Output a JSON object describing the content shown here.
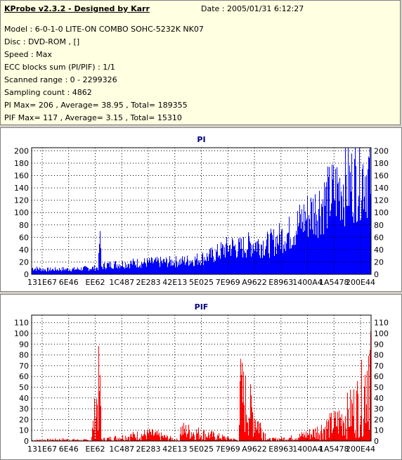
{
  "header": {
    "title": "KProbe v2.3.2 - Designed by Karr",
    "date": "Date : 2005/01/31 6:12:27"
  },
  "info_lines": [
    "Model : 6-0-1-0 LITE-ON COMBO SOHC-5232K NK07",
    "Disc : DVD-ROM ,  []",
    "Speed : Max",
    "ECC blocks sum (PI/PIF) : 1/1",
    "Scanned range : 0 - 2299326",
    "Sampling count : 4862",
    "PI Max= 206 , Average= 38.95 , Total= 189355",
    "PIF Max= 117 , Average= 3.15 , Total= 15310"
  ],
  "colors": {
    "pi": "#0000ff",
    "pif": "#ff0000",
    "title": "#00007f",
    "grid": "#000000"
  },
  "chart_data": [
    {
      "type": "area",
      "title": "PI",
      "ylim": [
        0,
        205
      ],
      "yticks": [
        0,
        20,
        40,
        60,
        80,
        100,
        120,
        140,
        160,
        180,
        200
      ],
      "xtick_labels": [
        "131E67",
        "6E46",
        "EE62",
        "1C487",
        "2E283",
        "42E13",
        "5E025",
        "7E969",
        "A9622",
        "E8963",
        "1400A4",
        "1A5478",
        "200E44"
      ],
      "xlim": [
        0,
        2299326
      ],
      "grid": true,
      "series": [
        {
          "values_x": [
            0,
            100000,
            200000,
            300000,
            400000,
            450000,
            460000,
            470000,
            500000,
            600000,
            700000,
            800000,
            900000,
            1000000,
            1100000,
            1200000,
            1250000,
            1300000,
            1350000,
            1400000,
            1500000,
            1600000,
            1650000,
            1700000,
            1750000,
            1800000,
            1850000,
            1900000,
            1950000,
            2000000,
            2050000,
            2100000,
            2150000,
            2200000,
            2250000,
            2299326
          ],
          "values_y": [
            12,
            9,
            10,
            10,
            12,
            13,
            82,
            14,
            18,
            20,
            22,
            23,
            24,
            25,
            28,
            35,
            40,
            48,
            55,
            50,
            60,
            58,
            65,
            75,
            80,
            95,
            110,
            120,
            135,
            145,
            160,
            170,
            175,
            185,
            195,
            190
          ]
        }
      ]
    },
    {
      "type": "area",
      "title": "PIF",
      "ylim": [
        0,
        117
      ],
      "yticks": [
        0,
        10,
        20,
        30,
        40,
        50,
        60,
        70,
        80,
        90,
        100,
        110
      ],
      "xtick_labels": [
        "131E67",
        "6E46",
        "EE62",
        "1C487",
        "2E283",
        "42E13",
        "5E025",
        "7E969",
        "A9622",
        "E8963",
        "1400A4",
        "1A5478",
        "200E44"
      ],
      "xlim": [
        0,
        2299326
      ],
      "grid": true,
      "series": [
        {
          "values_x": [
            0,
            200000,
            400000,
            460000,
            470000,
            800000,
            1000000,
            1010000,
            1400000,
            1410000,
            1600000,
            1700000,
            1800000,
            1850000,
            1900000,
            1950000,
            2000000,
            2050000,
            2100000,
            2150000,
            2200000,
            2250000,
            2280000,
            2299326
          ],
          "values_y": [
            1,
            2,
            1,
            74,
            2,
            9,
            1,
            14,
            1,
            61,
            2,
            3,
            5,
            8,
            10,
            14,
            18,
            22,
            28,
            35,
            45,
            60,
            112,
            100
          ]
        }
      ]
    }
  ]
}
